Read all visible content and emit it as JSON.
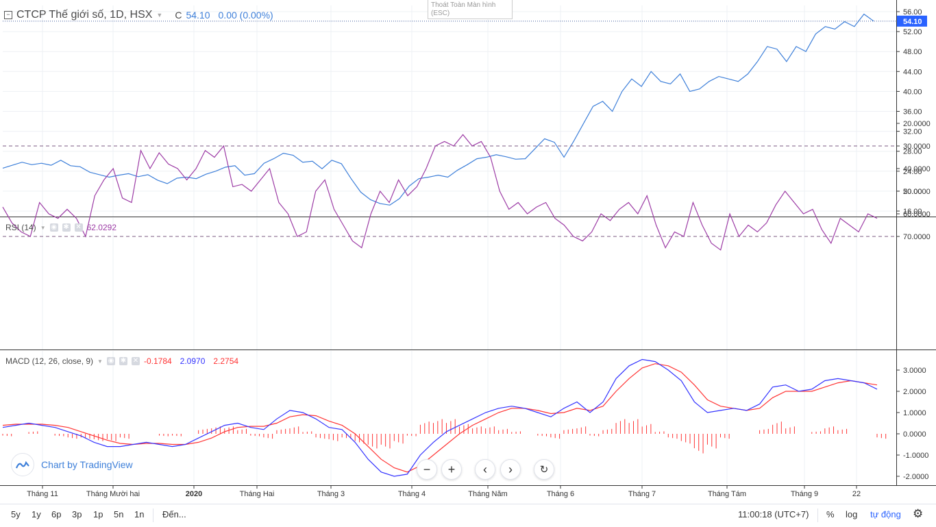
{
  "header": {
    "symbol_title": "CTCP Thế giới số, 1D, HSX",
    "close_prefix": "C",
    "close_value": "54.10",
    "change": "0.00 (0.00%)"
  },
  "fullscreen_tip": {
    "line1": "Thoát Toàn Màn hình",
    "line2": "(ESC)"
  },
  "price_axis": {
    "ticks": [
      "56.00",
      "52.00",
      "48.00",
      "44.00",
      "40.00",
      "36.00",
      "32.00",
      "28.00",
      "24.00",
      "20.00",
      "16.00"
    ],
    "last_price_label": "54.10",
    "last_price_color": "#2962ff"
  },
  "rsi": {
    "label": "RSI (14)",
    "value": "62.0292",
    "ticks": [
      "70.0000",
      "60.0000",
      "50.0000",
      "40.0000",
      "30.0000",
      "20.0000"
    ],
    "line_color": "#9c3ba5",
    "band_color": "#f0e4f2"
  },
  "macd": {
    "label": "MACD (12, 26, close, 9)",
    "histogram_value": "-0.1784",
    "macd_value": "2.0970",
    "signal_value": "2.2754",
    "ticks": [
      "3.0000",
      "2.0000",
      "1.0000",
      "0.0000",
      "-1.0000",
      "-2.0000"
    ],
    "macd_color": "#3333ff",
    "signal_color": "#ff3333",
    "hist_color": "#ff3333"
  },
  "time_axis": {
    "labels": [
      "Tháng 11",
      "Tháng Mười hai",
      "2020",
      "Tháng Hai",
      "Tháng 3",
      "Tháng 4",
      "Tháng Năm",
      "Tháng 6",
      "Tháng 7",
      "Tháng Tám",
      "Tháng 9",
      "22"
    ]
  },
  "watermark": {
    "text": "Chart by TradingView"
  },
  "bottombar": {
    "ranges": [
      "5y",
      "1y",
      "6p",
      "3p",
      "1p",
      "5n",
      "1n"
    ],
    "goto": "Đến...",
    "clock": "11:00:18 (UTC+7)",
    "percent": "%",
    "log": "log",
    "auto": "tự động"
  },
  "chart_data": [
    {
      "type": "line",
      "title": "CTCP Thế giới số, 1D, HSX",
      "series": [
        {
          "values": [
            24.6,
            25.2,
            25.8,
            25.3,
            25.6,
            25.2,
            26.2,
            25.1,
            24.9,
            23.8,
            23.3,
            22.8,
            23.2,
            23.5,
            22.9,
            23.3,
            22.2,
            21.5,
            22.6,
            22.8,
            22.5,
            23.4,
            24.0,
            24.8,
            25.1,
            23.2,
            23.5,
            25.6,
            26.5,
            27.6,
            27.2,
            25.8,
            26.0,
            24.5,
            26.2,
            25.5,
            22.5,
            19.8,
            18.3,
            17.5,
            17.2,
            18.5,
            21.0,
            22.5,
            22.8,
            23.2,
            22.8,
            24.2,
            25.3,
            26.5,
            26.8,
            27.3,
            26.9,
            26.4,
            26.5,
            28.5,
            30.5,
            29.8,
            26.8,
            30.0,
            33.5,
            37.0,
            38.0,
            36.0,
            40.0,
            42.5,
            41.0,
            44.0,
            42.0,
            41.5,
            43.5,
            40.0,
            40.5,
            42.0,
            43.0,
            42.5,
            42.0,
            43.5,
            46.0,
            49.0,
            48.5,
            46.0,
            49.0,
            48.0,
            51.5,
            53.0,
            52.5,
            54.0,
            53.0,
            55.5,
            54.1
          ]
        }
      ],
      "ylim": [
        16,
        56
      ]
    },
    {
      "type": "line",
      "title": "RSI (14)",
      "series": [
        {
          "values": [
            57,
            64,
            68,
            70,
            55,
            60,
            62,
            58,
            62,
            70,
            52,
            45,
            40,
            53,
            55,
            32,
            40,
            33,
            38,
            40,
            45,
            40,
            32,
            35,
            30,
            48,
            47,
            50,
            45,
            40,
            55,
            60,
            70,
            68,
            50,
            45,
            58,
            65,
            72,
            75,
            60,
            50,
            55,
            45,
            52,
            48,
            40,
            30,
            28,
            30,
            25,
            30,
            28,
            35,
            50,
            58,
            55,
            60,
            57,
            55,
            62,
            65,
            70,
            72,
            68,
            60,
            63,
            58,
            55,
            60,
            52,
            65,
            75,
            68,
            70,
            55,
            65,
            73,
            76,
            60,
            70,
            65,
            68,
            64,
            56,
            50,
            55,
            60,
            58,
            67,
            73,
            62,
            65,
            68,
            60,
            62
          ]
        }
      ],
      "ylim": [
        20,
        75
      ]
    },
    {
      "type": "line",
      "title": "MACD (12, 26, close, 9)",
      "series": [
        {
          "name": "MACD",
          "values": [
            0.3,
            0.4,
            0.5,
            0.4,
            0.3,
            0.1,
            -0.1,
            -0.4,
            -0.6,
            -0.6,
            -0.5,
            -0.4,
            -0.5,
            -0.6,
            -0.5,
            -0.2,
            0.1,
            0.4,
            0.5,
            0.3,
            0.2,
            0.7,
            1.1,
            1.0,
            0.7,
            0.3,
            0.2,
            -0.4,
            -1.2,
            -1.8,
            -2.0,
            -1.9,
            -1.0,
            -0.4,
            0.1,
            0.4,
            0.7,
            1.0,
            1.2,
            1.3,
            1.2,
            1.0,
            0.8,
            1.2,
            1.5,
            1.0,
            1.5,
            2.6,
            3.2,
            3.5,
            3.4,
            3.0,
            2.5,
            1.5,
            1.0,
            1.1,
            1.2,
            1.1,
            1.4,
            2.2,
            2.3,
            2.0,
            2.1,
            2.5,
            2.6,
            2.5,
            2.4,
            2.1
          ]
        },
        {
          "name": "Signal",
          "values": [
            0.4,
            0.45,
            0.45,
            0.45,
            0.4,
            0.3,
            0.1,
            -0.1,
            -0.3,
            -0.45,
            -0.5,
            -0.45,
            -0.45,
            -0.5,
            -0.5,
            -0.4,
            -0.2,
            0.1,
            0.3,
            0.35,
            0.35,
            0.5,
            0.8,
            0.9,
            0.85,
            0.6,
            0.4,
            0.0,
            -0.6,
            -1.2,
            -1.6,
            -1.8,
            -1.5,
            -1.0,
            -0.5,
            0.0,
            0.4,
            0.7,
            1.0,
            1.2,
            1.2,
            1.1,
            0.95,
            1.0,
            1.2,
            1.1,
            1.3,
            2.0,
            2.6,
            3.1,
            3.3,
            3.2,
            2.9,
            2.3,
            1.6,
            1.3,
            1.2,
            1.1,
            1.2,
            1.7,
            2.0,
            2.0,
            2.0,
            2.2,
            2.4,
            2.5,
            2.4,
            2.3
          ]
        }
      ],
      "histogram": [
        -0.1,
        0.0,
        0.1,
        0.0,
        -0.1,
        -0.2,
        -0.2,
        -0.3,
        -0.3,
        -0.2,
        0.0,
        0.0,
        -0.1,
        -0.1,
        0.0,
        0.2,
        0.3,
        0.3,
        0.2,
        -0.1,
        -0.2,
        0.2,
        0.3,
        0.1,
        -0.2,
        -0.3,
        -0.2,
        -0.4,
        -0.6,
        -0.6,
        -0.4,
        -0.1,
        0.5,
        0.6,
        0.6,
        0.4,
        0.3,
        0.3,
        0.2,
        0.1,
        0.0,
        -0.1,
        -0.2,
        0.2,
        0.3,
        -0.1,
        0.2,
        0.6,
        0.6,
        0.4,
        0.1,
        -0.2,
        -0.4,
        -0.8,
        -0.6,
        -0.2,
        0.0,
        0.0,
        0.2,
        0.5,
        0.3,
        0.0,
        0.1,
        0.3,
        0.2,
        0.0,
        0.0,
        -0.2
      ],
      "ylim": [
        -2.3,
        3.6
      ]
    }
  ]
}
